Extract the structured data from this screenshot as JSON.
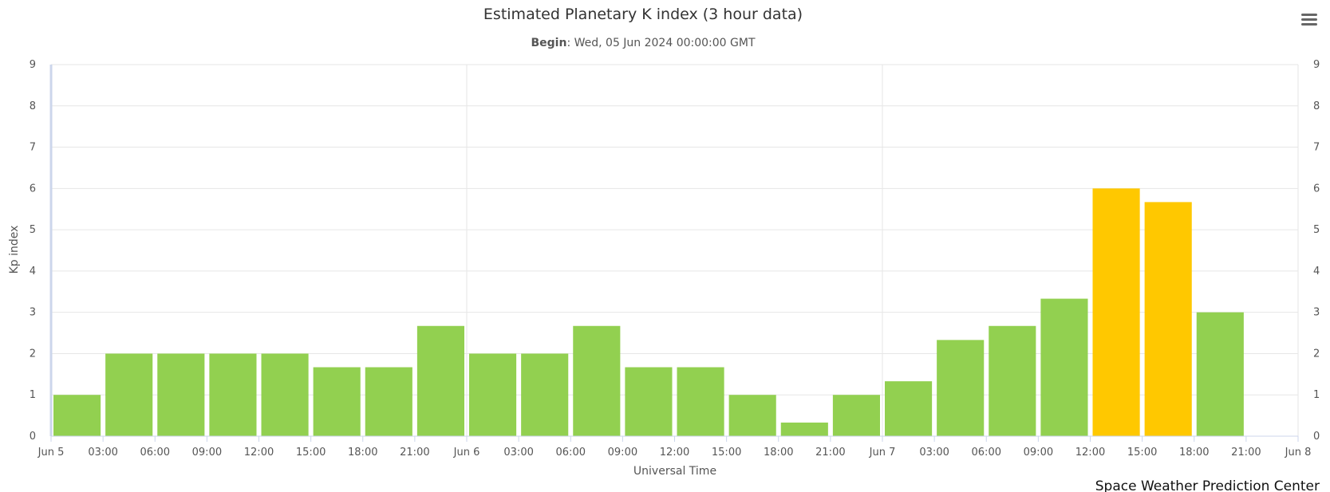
{
  "chart_data": {
    "type": "bar",
    "title": "Estimated Planetary K index (3 hour data)",
    "subtitle": {
      "label": "Begin",
      "separator": ": ",
      "value": "Wed, 05 Jun 2024 00:00:00 GMT"
    },
    "xlabel": "Universal Time",
    "ylabel": "Kp index",
    "ylim": [
      0,
      9
    ],
    "y_ticks": [
      "0",
      "1",
      "2",
      "3",
      "4",
      "5",
      "6",
      "7",
      "8",
      "9"
    ],
    "x_range_hours": [
      0,
      72
    ],
    "x_ticks": [
      {
        "hour": 0,
        "label": "Jun 5"
      },
      {
        "hour": 3,
        "label": "03:00"
      },
      {
        "hour": 6,
        "label": "06:00"
      },
      {
        "hour": 9,
        "label": "09:00"
      },
      {
        "hour": 12,
        "label": "12:00"
      },
      {
        "hour": 15,
        "label": "15:00"
      },
      {
        "hour": 18,
        "label": "18:00"
      },
      {
        "hour": 21,
        "label": "21:00"
      },
      {
        "hour": 24,
        "label": "Jun 6"
      },
      {
        "hour": 27,
        "label": "03:00"
      },
      {
        "hour": 30,
        "label": "06:00"
      },
      {
        "hour": 33,
        "label": "09:00"
      },
      {
        "hour": 36,
        "label": "12:00"
      },
      {
        "hour": 39,
        "label": "15:00"
      },
      {
        "hour": 42,
        "label": "18:00"
      },
      {
        "hour": 45,
        "label": "21:00"
      },
      {
        "hour": 48,
        "label": "Jun 7"
      },
      {
        "hour": 51,
        "label": "03:00"
      },
      {
        "hour": 54,
        "label": "06:00"
      },
      {
        "hour": 57,
        "label": "09:00"
      },
      {
        "hour": 60,
        "label": "12:00"
      },
      {
        "hour": 63,
        "label": "15:00"
      },
      {
        "hour": 66,
        "label": "18:00"
      },
      {
        "hour": 69,
        "label": "21:00"
      },
      {
        "hour": 72,
        "label": "Jun 8"
      }
    ],
    "grid_hours": [
      0,
      24,
      48,
      72
    ],
    "y_grid": true,
    "bar_start_hours": [
      0,
      3,
      6,
      9,
      12,
      15,
      18,
      21,
      24,
      27,
      30,
      33,
      36,
      39,
      42,
      45,
      48,
      51,
      54,
      57,
      60,
      63,
      66
    ],
    "values": [
      1.0,
      2.0,
      2.0,
      2.0,
      2.0,
      1.67,
      1.67,
      2.67,
      2.0,
      2.0,
      2.67,
      1.67,
      1.67,
      1.0,
      0.33,
      1.0,
      1.33,
      2.33,
      2.67,
      3.33,
      6.0,
      5.67,
      3.0
    ],
    "colors": {
      "below_5": "#92d050",
      "at_or_above_5": "#ffc800",
      "grid": "#e6e6e6",
      "axis_line": "#ccd6eb"
    },
    "threshold": 5,
    "legend": "none"
  },
  "credit": "Space Weather Prediction Center",
  "menu_icon": "hamburger-menu-icon"
}
